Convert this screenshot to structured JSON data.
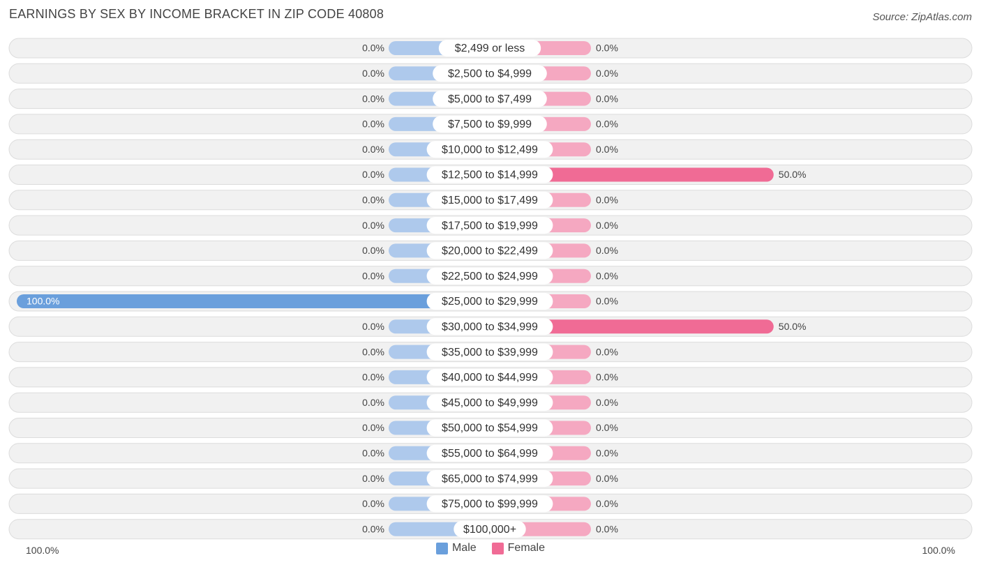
{
  "title": "EARNINGS BY SEX BY INCOME BRACKET IN ZIP CODE 40808",
  "source": "Source: ZipAtlas.com",
  "colors": {
    "male": "#6a9fdc",
    "male_light": "#aec9ec",
    "female": "#f06b95",
    "female_light": "#f5a8c1",
    "row_bg": "#f1f1f1",
    "row_border": "#dcdcdc"
  },
  "legend": {
    "male": "Male",
    "female": "Female"
  },
  "axis": {
    "left_label": "100.0%",
    "right_label": "100.0%"
  },
  "chart_data": {
    "type": "bar",
    "orientation": "horizontal-diverging",
    "xlim": [
      -100,
      100
    ],
    "categories": [
      "$2,499 or less",
      "$2,500 to $4,999",
      "$5,000 to $7,499",
      "$7,500 to $9,999",
      "$10,000 to $12,499",
      "$12,500 to $14,999",
      "$15,000 to $17,499",
      "$17,500 to $19,999",
      "$20,000 to $22,499",
      "$22,500 to $24,999",
      "$25,000 to $29,999",
      "$30,000 to $34,999",
      "$35,000 to $39,999",
      "$40,000 to $44,999",
      "$45,000 to $49,999",
      "$50,000 to $54,999",
      "$55,000 to $64,999",
      "$65,000 to $74,999",
      "$75,000 to $99,999",
      "$100,000+"
    ],
    "series": [
      {
        "name": "Male",
        "values": [
          0,
          0,
          0,
          0,
          0,
          0,
          0,
          0,
          0,
          0,
          100,
          0,
          0,
          0,
          0,
          0,
          0,
          0,
          0,
          0
        ],
        "labels": [
          "0.0%",
          "0.0%",
          "0.0%",
          "0.0%",
          "0.0%",
          "0.0%",
          "0.0%",
          "0.0%",
          "0.0%",
          "0.0%",
          "100.0%",
          "0.0%",
          "0.0%",
          "0.0%",
          "0.0%",
          "0.0%",
          "0.0%",
          "0.0%",
          "0.0%",
          "0.0%"
        ]
      },
      {
        "name": "Female",
        "values": [
          0,
          0,
          0,
          0,
          0,
          50,
          0,
          0,
          0,
          0,
          0,
          50,
          0,
          0,
          0,
          0,
          0,
          0,
          0,
          0
        ],
        "labels": [
          "0.0%",
          "0.0%",
          "0.0%",
          "0.0%",
          "0.0%",
          "50.0%",
          "0.0%",
          "0.0%",
          "0.0%",
          "0.0%",
          "0.0%",
          "50.0%",
          "0.0%",
          "0.0%",
          "0.0%",
          "0.0%",
          "0.0%",
          "0.0%",
          "0.0%",
          "0.0%"
        ]
      }
    ]
  }
}
